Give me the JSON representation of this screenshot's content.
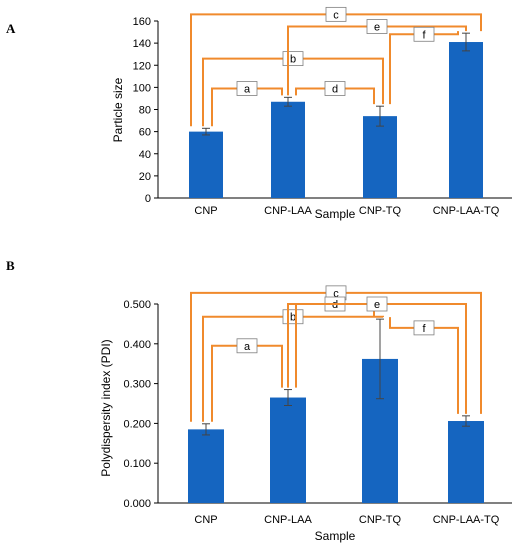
{
  "colors": {
    "bar": "#1565C0",
    "bracket": "#F08A2C",
    "axis": "#000000",
    "error": "#444444"
  },
  "chart_data": [
    {
      "type": "bar",
      "panel": "A",
      "categories": [
        "CNP",
        "CNP-LAA",
        "CNP-TQ",
        "CNP-LAA-TQ"
      ],
      "values": [
        60,
        87,
        74,
        141
      ],
      "errors": [
        3,
        4,
        9,
        8
      ],
      "ylim": [
        0,
        160
      ],
      "yticks": [
        "0",
        "20",
        "40",
        "60",
        "80",
        "100",
        "120",
        "140",
        "160"
      ],
      "xlabel": "Sample",
      "ylabel": "Particle size",
      "grid": false,
      "legend": "none",
      "significance": [
        {
          "label": "a",
          "from": 0,
          "to": 1,
          "level": 99
        },
        {
          "label": "b",
          "from": 0,
          "to": 2,
          "level": 126
        },
        {
          "label": "c",
          "from": 0,
          "to": 3,
          "level": 166
        },
        {
          "label": "d",
          "from": 1,
          "to": 2,
          "level": 99
        },
        {
          "label": "e",
          "from": 1,
          "to": 3,
          "level": 155
        },
        {
          "label": "f",
          "from": 2,
          "to": 3,
          "level": 148
        }
      ]
    },
    {
      "type": "bar",
      "panel": "B",
      "categories": [
        "CNP",
        "CNP-LAA",
        "CNP-TQ",
        "CNP-LAA-TQ"
      ],
      "values": [
        0.185,
        0.265,
        0.362,
        0.206
      ],
      "errors": [
        0.014,
        0.02,
        0.1,
        0.013
      ],
      "ylim": [
        0,
        0.5
      ],
      "yticks": [
        "0.000",
        "0.100",
        "0.200",
        "0.300",
        "0.400",
        "0.500"
      ],
      "xlabel": "Sample",
      "ylabel": "Polydispersity index (PDI)",
      "grid": false,
      "legend": "none",
      "significance": [
        {
          "label": "a",
          "from": 0,
          "to": 1,
          "level": 0.395
        },
        {
          "label": "b",
          "from": 0,
          "to": 2,
          "level": 0.468
        },
        {
          "label": "c",
          "from": 0,
          "to": 3,
          "level": 0.528
        },
        {
          "label": "d",
          "from": 1,
          "to": 2,
          "level": 0.5
        },
        {
          "label": "e",
          "from": 1,
          "to": 3,
          "level": 0.5
        },
        {
          "label": "f",
          "from": 2,
          "to": 3,
          "level": 0.44
        }
      ]
    }
  ]
}
